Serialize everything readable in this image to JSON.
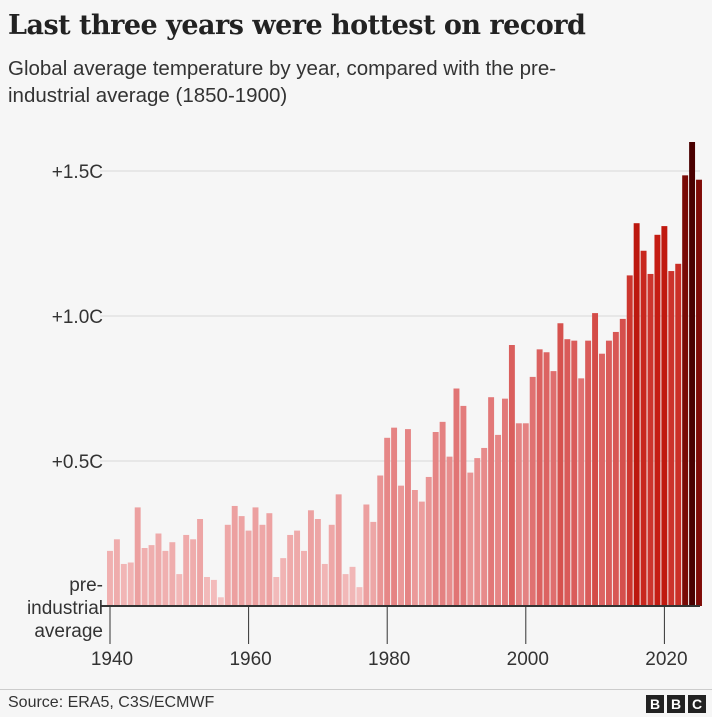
{
  "chart_data": {
    "type": "bar",
    "title": "Last three years were hottest on record",
    "subtitle": "Global average temperature by year, compared with the pre-industrial average (1850-1900)",
    "x": [
      1940,
      1941,
      1942,
      1943,
      1944,
      1945,
      1946,
      1947,
      1948,
      1949,
      1950,
      1951,
      1952,
      1953,
      1954,
      1955,
      1956,
      1957,
      1958,
      1959,
      1960,
      1961,
      1962,
      1963,
      1964,
      1965,
      1966,
      1967,
      1968,
      1969,
      1970,
      1971,
      1972,
      1973,
      1974,
      1975,
      1976,
      1977,
      1978,
      1979,
      1980,
      1981,
      1982,
      1983,
      1984,
      1985,
      1986,
      1987,
      1988,
      1989,
      1990,
      1991,
      1992,
      1993,
      1994,
      1995,
      1996,
      1997,
      1998,
      1999,
      2000,
      2001,
      2002,
      2003,
      2004,
      2005,
      2006,
      2007,
      2008,
      2009,
      2010,
      2011,
      2012,
      2013,
      2014,
      2015,
      2016,
      2017,
      2018,
      2019,
      2020,
      2021,
      2022,
      2023,
      2024,
      2025
    ],
    "values": [
      0.19,
      0.23,
      0.145,
      0.15,
      0.34,
      0.2,
      0.21,
      0.25,
      0.19,
      0.22,
      0.11,
      0.245,
      0.23,
      0.3,
      0.1,
      0.09,
      0.03,
      0.28,
      0.345,
      0.31,
      0.26,
      0.34,
      0.28,
      0.32,
      0.1,
      0.165,
      0.245,
      0.26,
      0.19,
      0.33,
      0.3,
      0.145,
      0.28,
      0.385,
      0.11,
      0.135,
      0.065,
      0.35,
      0.29,
      0.45,
      0.58,
      0.615,
      0.415,
      0.61,
      0.4,
      0.36,
      0.445,
      0.6,
      0.635,
      0.515,
      0.75,
      0.69,
      0.46,
      0.51,
      0.545,
      0.72,
      0.59,
      0.715,
      0.9,
      0.63,
      0.63,
      0.79,
      0.885,
      0.875,
      0.81,
      0.975,
      0.92,
      0.915,
      0.785,
      0.915,
      1.01,
      0.87,
      0.915,
      0.945,
      0.99,
      1.14,
      1.32,
      1.225,
      1.145,
      1.28,
      1.31,
      1.155,
      1.18,
      1.485,
      1.6,
      1.47
    ],
    "xlim": [
      1940,
      2025
    ],
    "ylim": [
      0,
      1.6
    ],
    "xticks": [
      "1940",
      "1960",
      "1980",
      "2000",
      "2020"
    ],
    "yticks": [
      {
        "value": 0.5,
        "label": "+0.5C"
      },
      {
        "value": 1.0,
        "label": "+1.0C"
      },
      {
        "value": 1.5,
        "label": "+1.5C"
      }
    ],
    "baseline_label": [
      "pre-",
      "industrial",
      "average"
    ],
    "grid": true,
    "colors": {
      "low": "#f5c4c4",
      "mid": "#e07070",
      "high": "#c41a10",
      "top": "#4a0000"
    }
  },
  "footer": {
    "source": "Source: ERA5, C3S/ECMWF",
    "logo": [
      "B",
      "B",
      "C"
    ]
  }
}
